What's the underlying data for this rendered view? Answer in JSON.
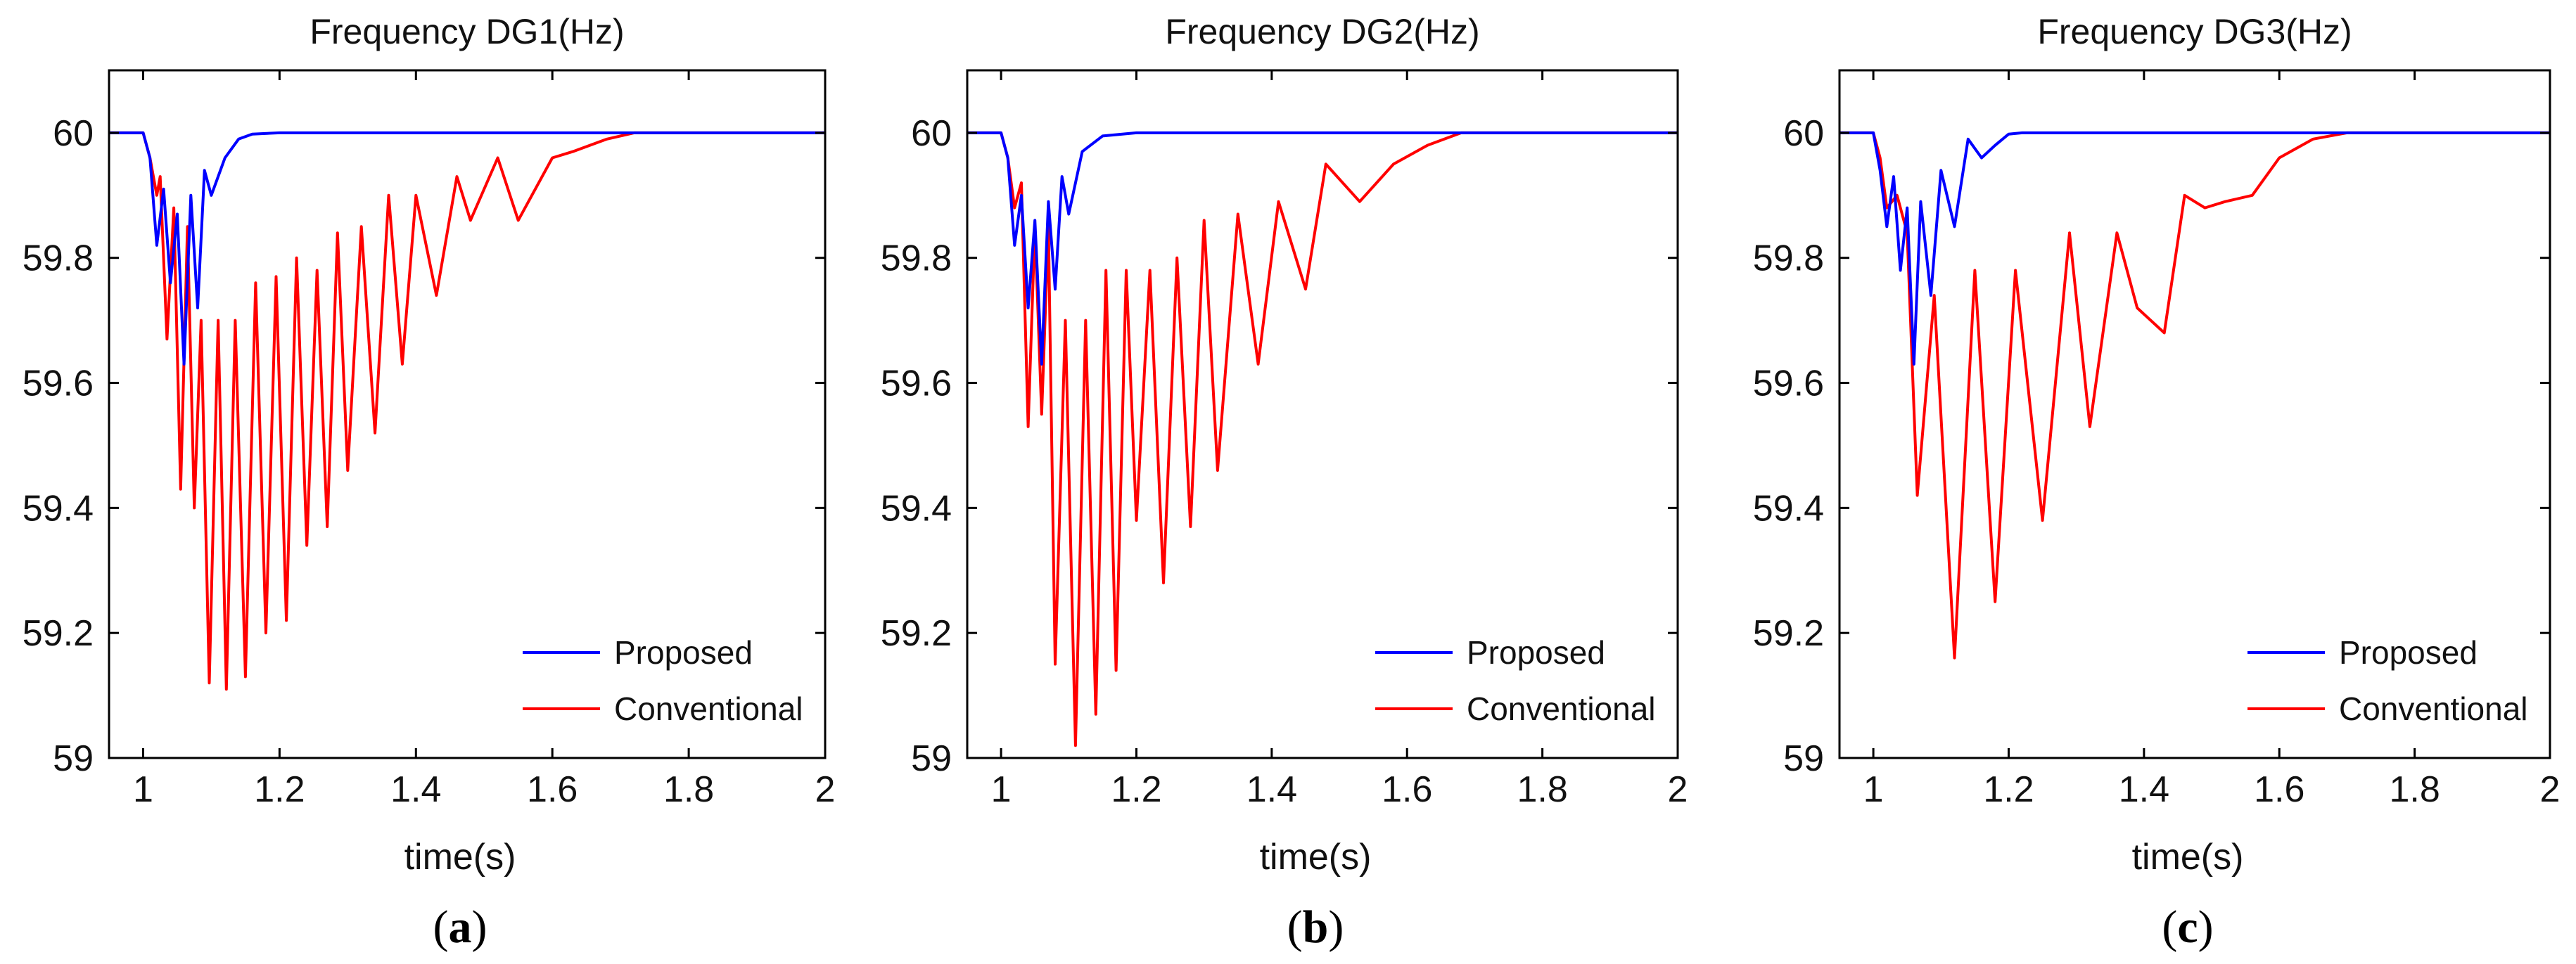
{
  "chart_data": [
    {
      "type": "line",
      "title": "Frequency DG1(Hz)",
      "xlabel": "time(s)",
      "ylabel": "",
      "xlim": [
        0.95,
        2.0
      ],
      "ylim": [
        59.0,
        60.1
      ],
      "xticks": [
        1,
        1.2,
        1.4,
        1.6,
        1.8,
        2
      ],
      "xtick_labels": [
        "1",
        "1.2",
        "1.4",
        "1.6",
        "1.8",
        "2"
      ],
      "yticks": [
        59,
        59.2,
        59.4,
        59.6,
        59.8,
        60
      ],
      "ytick_labels": [
        "59",
        "59.2",
        "59.4",
        "59.6",
        "59.8",
        "60"
      ],
      "caption": "a",
      "legend_position": "bottom-right",
      "series": [
        {
          "name": "Proposed",
          "color": "#0000ff",
          "x": [
            0.95,
            1.0,
            1.01,
            1.02,
            1.03,
            1.04,
            1.05,
            1.06,
            1.07,
            1.08,
            1.09,
            1.1,
            1.12,
            1.14,
            1.16,
            1.2,
            1.25,
            2.0
          ],
          "y": [
            60.0,
            60.0,
            59.96,
            59.82,
            59.91,
            59.76,
            59.87,
            59.63,
            59.9,
            59.72,
            59.94,
            59.9,
            59.96,
            59.99,
            59.998,
            60.0,
            60.0,
            60.0
          ]
        },
        {
          "name": "Conventional",
          "color": "#ff0000",
          "x": [
            0.95,
            1.0,
            1.01,
            1.02,
            1.025,
            1.035,
            1.045,
            1.055,
            1.065,
            1.075,
            1.085,
            1.097,
            1.11,
            1.122,
            1.135,
            1.15,
            1.165,
            1.18,
            1.195,
            1.21,
            1.225,
            1.24,
            1.255,
            1.27,
            1.285,
            1.3,
            1.32,
            1.34,
            1.36,
            1.38,
            1.4,
            1.43,
            1.46,
            1.48,
            1.52,
            1.55,
            1.6,
            1.63,
            1.68,
            1.72,
            2.0
          ],
          "y": [
            60.0,
            60.0,
            59.96,
            59.9,
            59.93,
            59.67,
            59.88,
            59.43,
            59.85,
            59.4,
            59.7,
            59.12,
            59.7,
            59.11,
            59.7,
            59.13,
            59.76,
            59.2,
            59.77,
            59.22,
            59.8,
            59.34,
            59.78,
            59.37,
            59.84,
            59.46,
            59.85,
            59.52,
            59.9,
            59.63,
            59.9,
            59.74,
            59.93,
            59.86,
            59.96,
            59.86,
            59.96,
            59.97,
            59.99,
            60.0,
            60.0
          ]
        }
      ]
    },
    {
      "type": "line",
      "title": "Frequency DG2(Hz)",
      "xlabel": "time(s)",
      "ylabel": "",
      "xlim": [
        0.95,
        2.0
      ],
      "ylim": [
        59.0,
        60.1
      ],
      "xticks": [
        1,
        1.2,
        1.4,
        1.6,
        1.8,
        2
      ],
      "xtick_labels": [
        "1",
        "1.2",
        "1.4",
        "1.6",
        "1.8",
        "2"
      ],
      "yticks": [
        59,
        59.2,
        59.4,
        59.6,
        59.8,
        60
      ],
      "ytick_labels": [
        "59",
        "59.2",
        "59.4",
        "59.6",
        "59.8",
        "60"
      ],
      "caption": "b",
      "legend_position": "bottom-right",
      "series": [
        {
          "name": "Proposed",
          "color": "#0000ff",
          "x": [
            0.95,
            1.0,
            1.01,
            1.02,
            1.03,
            1.04,
            1.05,
            1.06,
            1.07,
            1.08,
            1.09,
            1.1,
            1.12,
            1.15,
            1.2,
            1.25,
            2.0
          ],
          "y": [
            60.0,
            60.0,
            59.96,
            59.82,
            59.9,
            59.72,
            59.86,
            59.63,
            59.89,
            59.75,
            59.93,
            59.87,
            59.97,
            59.995,
            60.0,
            60.0,
            60.0
          ]
        },
        {
          "name": "Conventional",
          "color": "#ff0000",
          "x": [
            0.95,
            1.0,
            1.01,
            1.02,
            1.03,
            1.04,
            1.05,
            1.06,
            1.07,
            1.08,
            1.095,
            1.11,
            1.125,
            1.14,
            1.155,
            1.17,
            1.185,
            1.2,
            1.22,
            1.24,
            1.26,
            1.28,
            1.3,
            1.32,
            1.35,
            1.38,
            1.41,
            1.45,
            1.48,
            1.53,
            1.58,
            1.63,
            1.68,
            1.73,
            2.0
          ],
          "y": [
            60.0,
            60.0,
            59.96,
            59.88,
            59.92,
            59.53,
            59.85,
            59.55,
            59.85,
            59.15,
            59.7,
            59.02,
            59.7,
            59.07,
            59.78,
            59.14,
            59.78,
            59.38,
            59.78,
            59.28,
            59.8,
            59.37,
            59.86,
            59.46,
            59.87,
            59.63,
            59.89,
            59.75,
            59.95,
            59.89,
            59.95,
            59.98,
            60.0,
            60.0,
            60.0
          ]
        }
      ]
    },
    {
      "type": "line",
      "title": "Frequency DG3(Hz)",
      "xlabel": "time(s)",
      "ylabel": "",
      "xlim": [
        0.95,
        2.0
      ],
      "ylim": [
        59.0,
        60.1
      ],
      "xticks": [
        1,
        1.2,
        1.4,
        1.6,
        1.8,
        2
      ],
      "xtick_labels": [
        "1",
        "1.2",
        "1.4",
        "1.6",
        "1.8",
        "2"
      ],
      "yticks": [
        59,
        59.2,
        59.4,
        59.6,
        59.8,
        60
      ],
      "ytick_labels": [
        "59",
        "59.2",
        "59.4",
        "59.6",
        "59.8",
        "60"
      ],
      "caption": "c",
      "legend_position": "bottom-right",
      "series": [
        {
          "name": "Proposed",
          "color": "#0000ff",
          "x": [
            0.95,
            1.0,
            1.01,
            1.02,
            1.03,
            1.04,
            1.05,
            1.06,
            1.07,
            1.085,
            1.1,
            1.12,
            1.14,
            1.16,
            1.18,
            1.2,
            1.22,
            1.26,
            2.0
          ],
          "y": [
            60.0,
            60.0,
            59.94,
            59.85,
            59.93,
            59.78,
            59.88,
            59.63,
            59.89,
            59.74,
            59.94,
            59.85,
            59.99,
            59.96,
            59.98,
            59.998,
            60.0,
            60.0,
            60.0
          ]
        },
        {
          "name": "Conventional",
          "color": "#ff0000",
          "x": [
            0.95,
            1.0,
            1.01,
            1.02,
            1.035,
            1.05,
            1.065,
            1.09,
            1.12,
            1.15,
            1.18,
            1.21,
            1.25,
            1.29,
            1.32,
            1.36,
            1.39,
            1.43,
            1.46,
            1.49,
            1.52,
            1.56,
            1.6,
            1.65,
            1.7,
            1.73,
            2.0
          ],
          "y": [
            60.0,
            60.0,
            59.96,
            59.88,
            59.9,
            59.84,
            59.42,
            59.74,
            59.16,
            59.78,
            59.25,
            59.78,
            59.38,
            59.84,
            59.53,
            59.84,
            59.72,
            59.68,
            59.9,
            59.88,
            59.89,
            59.9,
            59.96,
            59.99,
            60.0,
            60.0,
            60.0
          ]
        }
      ]
    }
  ]
}
